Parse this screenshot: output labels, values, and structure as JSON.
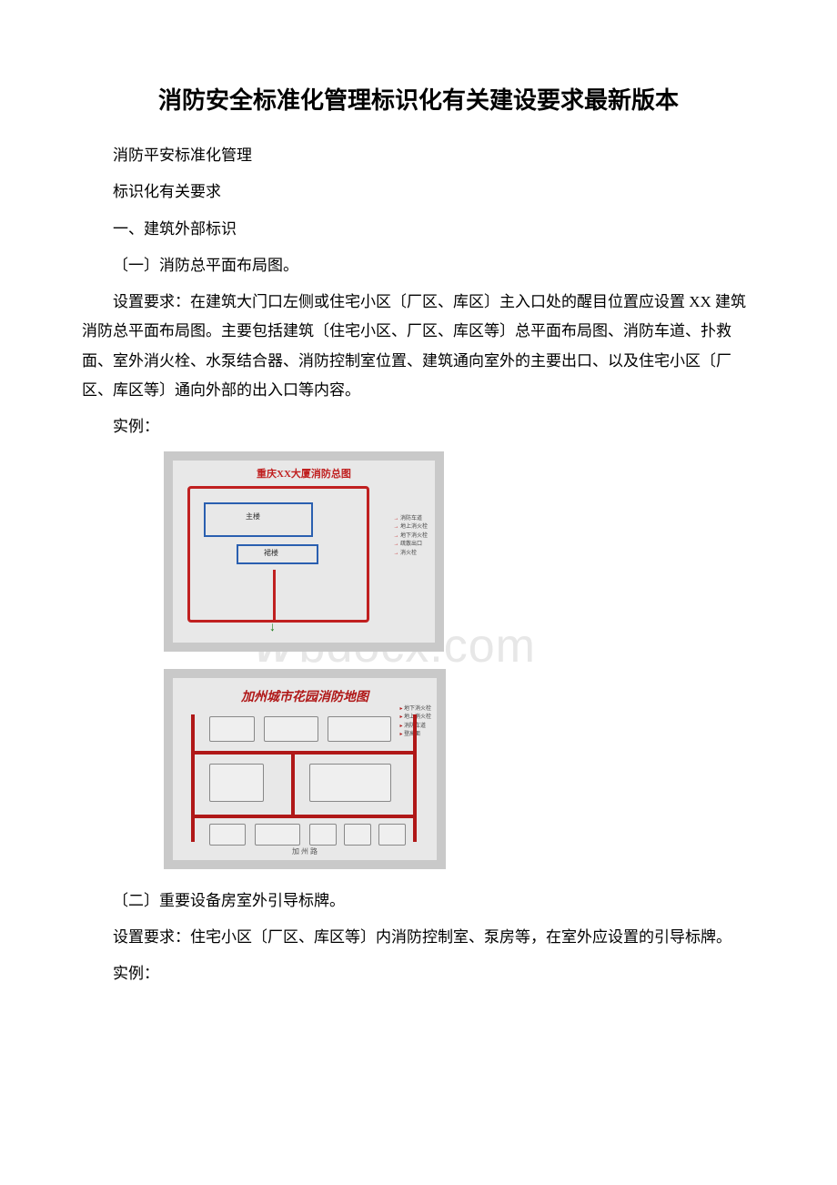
{
  "doc": {
    "title": "消防安全标准化管理标识化有关建设要求最新版本",
    "line1": "消防平安标准化管理",
    "line2": "标识化有关要求",
    "sec1_heading": "一、建筑外部标识",
    "sec1_1_heading": "〔一〕消防总平面布局图。",
    "sec1_1_req": "设置要求：在建筑大门口左侧或住宅小区〔厂区、库区〕主入口处的醒目位置应设置 XX 建筑消防总平面布局图。主要包括建筑〔住宅小区、厂区、库区等〕总平面布局图、消防车道、扑救面、室外消火栓、水泵结合器、消防控制室位置、建筑通向室外的主要出口、以及住宅小区〔厂区、库区等〕通向外部的出入口等内容。",
    "example_label": "实例：",
    "sec1_2_heading": "〔二〕重要设备房室外引导标牌。",
    "sec1_2_req": "设置要求：住宅小区〔厂区、库区等〕内消防控制室、泵房等，在室外应设置的引导标牌。"
  },
  "figure1": {
    "type": "diagram",
    "frame_color": "#c9c9c9",
    "background_color": "#e8e8e8",
    "outline_color": "#c02020",
    "secondary_color": "#2a5fb0",
    "arrow_color": "#1a7a1a",
    "title_text": "重庆XX大厦消防总图",
    "label_main": "主楼",
    "label_sub": "裙楼",
    "legend_items": [
      "消防车道",
      "地上消火栓",
      "地下消火栓",
      "疏散出口",
      "消火栓"
    ]
  },
  "figure2": {
    "type": "diagram",
    "frame_color": "#c9c9c9",
    "background_color": "#e8e8e8",
    "road_color": "#b01818",
    "block_border": "#888888",
    "block_fill": "#efefef",
    "title_text": "加州城市花园消防地图",
    "bottom_label": "加 州 路",
    "legend_items": [
      "地下消火栓",
      "地上消火栓",
      "消防车道",
      "登高面"
    ]
  },
  "watermark": {
    "text": "bdocx.com",
    "color": "#e7e7e7",
    "fontsize": 52
  }
}
